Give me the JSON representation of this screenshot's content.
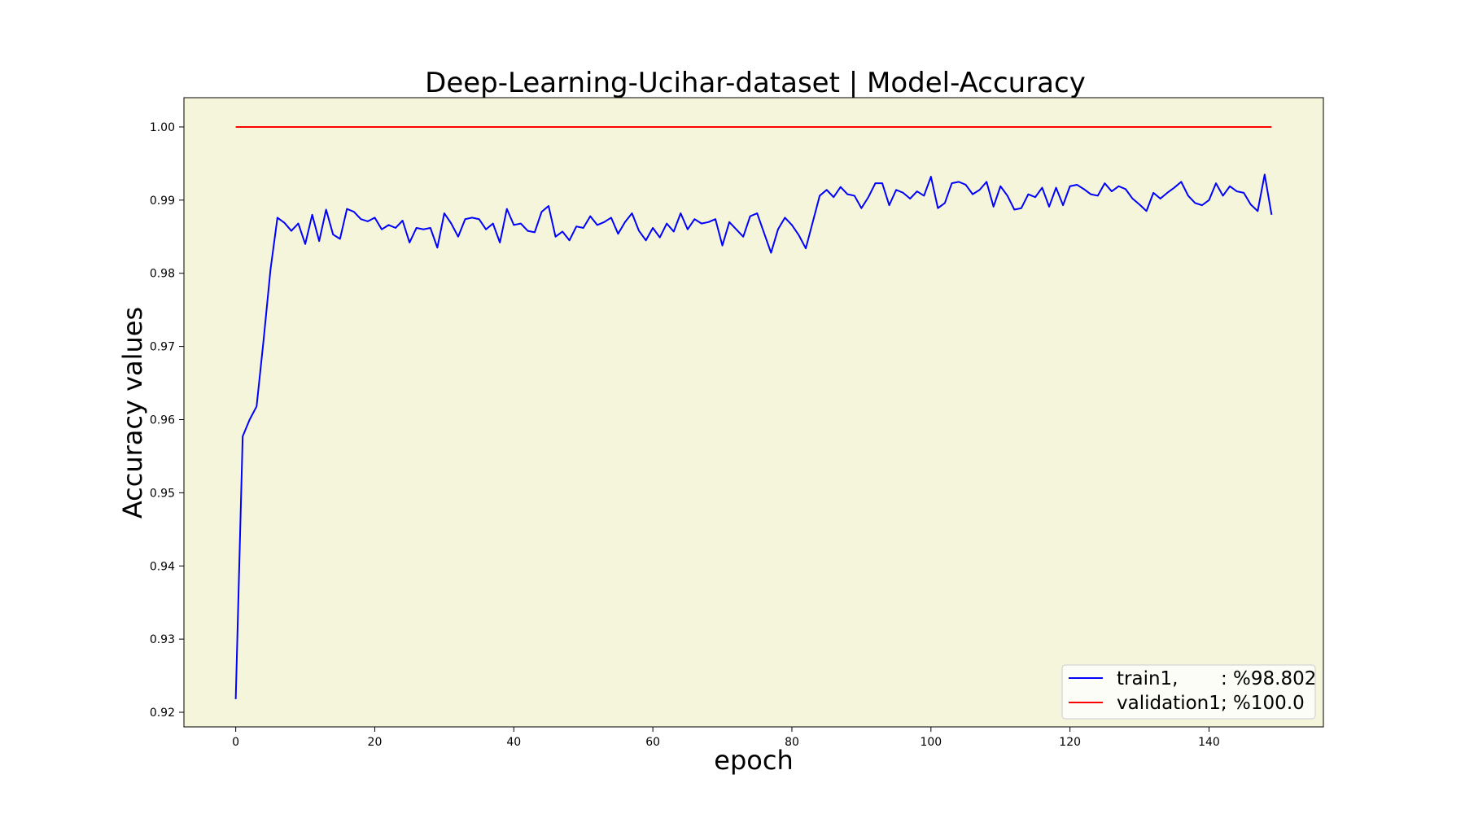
{
  "chart_data": {
    "type": "line",
    "title": "Deep-Learning-Ucihar-dataset  | Model-Accuracy",
    "xlabel": "epoch",
    "ylabel": "Accuracy values",
    "xlim": [
      -7.45,
      156.45
    ],
    "ylim": [
      0.918,
      1.004
    ],
    "xticks": [
      0,
      20,
      40,
      60,
      80,
      100,
      120,
      140
    ],
    "yticks": [
      0.92,
      0.93,
      0.94,
      0.95,
      0.96,
      0.97,
      0.98,
      0.99,
      1.0
    ],
    "ytick_labels": [
      "0.92",
      "0.93",
      "0.94",
      "0.95",
      "0.96",
      "0.97",
      "0.98",
      "0.99",
      "1.00"
    ],
    "grid": false,
    "legend_position": "lower-right",
    "plot_background": "#f5f5dc",
    "series": [
      {
        "name": "train1,",
        "legend_value": ": %98.802",
        "color": "#0000ff",
        "values": [
          0.9218,
          0.9577,
          0.96,
          0.9618,
          0.9708,
          0.9805,
          0.9876,
          0.9869,
          0.9858,
          0.9868,
          0.984,
          0.988,
          0.9844,
          0.9887,
          0.9853,
          0.9847,
          0.9888,
          0.9884,
          0.9874,
          0.9871,
          0.9876,
          0.986,
          0.9866,
          0.9862,
          0.9872,
          0.9842,
          0.9862,
          0.986,
          0.9862,
          0.9835,
          0.9882,
          0.9868,
          0.985,
          0.9874,
          0.9876,
          0.9874,
          0.986,
          0.9868,
          0.9842,
          0.9888,
          0.9866,
          0.9868,
          0.9858,
          0.9856,
          0.9884,
          0.9892,
          0.985,
          0.9857,
          0.9845,
          0.9864,
          0.9862,
          0.9878,
          0.9866,
          0.987,
          0.9876,
          0.9854,
          0.987,
          0.9882,
          0.9858,
          0.9845,
          0.9862,
          0.9849,
          0.9868,
          0.9857,
          0.9882,
          0.986,
          0.9874,
          0.9868,
          0.987,
          0.9874,
          0.9838,
          0.987,
          0.986,
          0.985,
          0.9878,
          0.9882,
          0.9855,
          0.9828,
          0.986,
          0.9876,
          0.9866,
          0.9852,
          0.9834,
          0.987,
          0.9906,
          0.9914,
          0.9904,
          0.9918,
          0.9908,
          0.9906,
          0.9889,
          0.9904,
          0.9923,
          0.9923,
          0.9893,
          0.9914,
          0.991,
          0.9902,
          0.9912,
          0.9906,
          0.9932,
          0.9889,
          0.9896,
          0.9923,
          0.9925,
          0.9921,
          0.9908,
          0.9914,
          0.9925,
          0.9891,
          0.9919,
          0.9906,
          0.9887,
          0.9889,
          0.9908,
          0.9904,
          0.9917,
          0.9891,
          0.9917,
          0.9893,
          0.9919,
          0.9921,
          0.9915,
          0.9908,
          0.9906,
          0.9923,
          0.9912,
          0.9919,
          0.9915,
          0.9902,
          0.9894,
          0.9885,
          0.991,
          0.9902,
          0.991,
          0.9917,
          0.9925,
          0.9906,
          0.9896,
          0.9893,
          0.99,
          0.9923,
          0.9906,
          0.9919,
          0.9912,
          0.991,
          0.9894,
          0.9885,
          0.9935,
          0.988
        ]
      },
      {
        "name": "validation1,",
        "legend_value": ": %100.0",
        "color": "#ff0000",
        "x": [
          0,
          149
        ],
        "values": [
          1.0,
          1.0
        ]
      }
    ]
  }
}
